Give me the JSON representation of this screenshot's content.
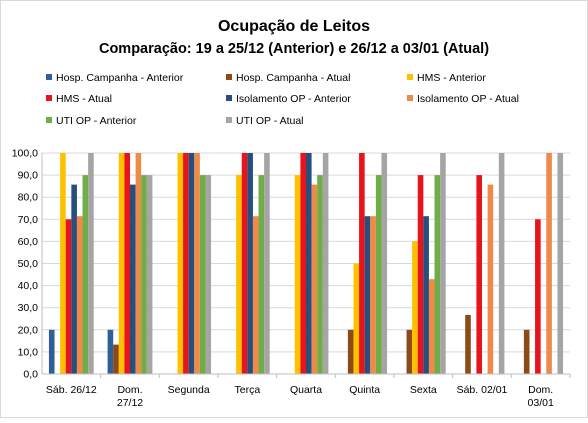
{
  "chart_data": {
    "type": "bar",
    "title": "Ocupação de Leitos",
    "subtitle": "Comparação: 19 a 25/12  (Anterior) e 26/12 a 03/01 (Atual)",
    "xlabel": "",
    "ylabel": "",
    "ylim": [
      0,
      100
    ],
    "yticks": [
      "0,0",
      "10,0",
      "20,0",
      "30,0",
      "40,0",
      "50,0",
      "60,0",
      "70,0",
      "80,0",
      "90,0",
      "100,0"
    ],
    "grid": true,
    "legend_position": "top",
    "categories": [
      [
        "Sáb. 26/12"
      ],
      [
        "Dom.",
        "27/12"
      ],
      [
        "Segunda"
      ],
      [
        "Terça"
      ],
      [
        "Quarta"
      ],
      [
        "Quinta"
      ],
      [
        "Sexta"
      ],
      [
        "Sáb. 02/01"
      ],
      [
        "Dom.",
        "03/01"
      ]
    ],
    "series": [
      {
        "name": "Hosp. Campanha - Anterior",
        "color": "#2E5F99",
        "values": [
          20,
          20,
          null,
          null,
          null,
          null,
          null,
          null,
          null
        ]
      },
      {
        "name": "Hosp. Campanha - Atual",
        "color": "#8B4A17",
        "values": [
          null,
          13.3,
          null,
          null,
          null,
          20,
          20,
          26.7,
          20
        ]
      },
      {
        "name": "HMS - Anterior",
        "color": "#FFC000",
        "values": [
          100,
          100,
          100,
          90,
          90,
          50,
          60,
          null,
          null
        ]
      },
      {
        "name": "HMS - Atual",
        "color": "#E8141B",
        "values": [
          70,
          100,
          100,
          100,
          100,
          100,
          90,
          90,
          70
        ]
      },
      {
        "name": "Isolamento OP - Anterior",
        "color": "#264F7F",
        "values": [
          85.7,
          85.7,
          100,
          100,
          100,
          71.4,
          71.4,
          null,
          null
        ]
      },
      {
        "name": "Isolamento OP - Atual",
        "color": "#EE8A4A",
        "values": [
          71.4,
          100,
          100,
          71.4,
          85.7,
          71.4,
          42.9,
          85.7,
          100
        ]
      },
      {
        "name": "UTI OP - Anterior",
        "color": "#70AD47",
        "values": [
          90,
          90,
          90,
          90,
          90,
          90,
          90,
          null,
          null
        ]
      },
      {
        "name": "UTI OP - Atual",
        "color": "#A5A5A5",
        "values": [
          100,
          90,
          90,
          100,
          100,
          100,
          100,
          100,
          100
        ]
      }
    ]
  }
}
